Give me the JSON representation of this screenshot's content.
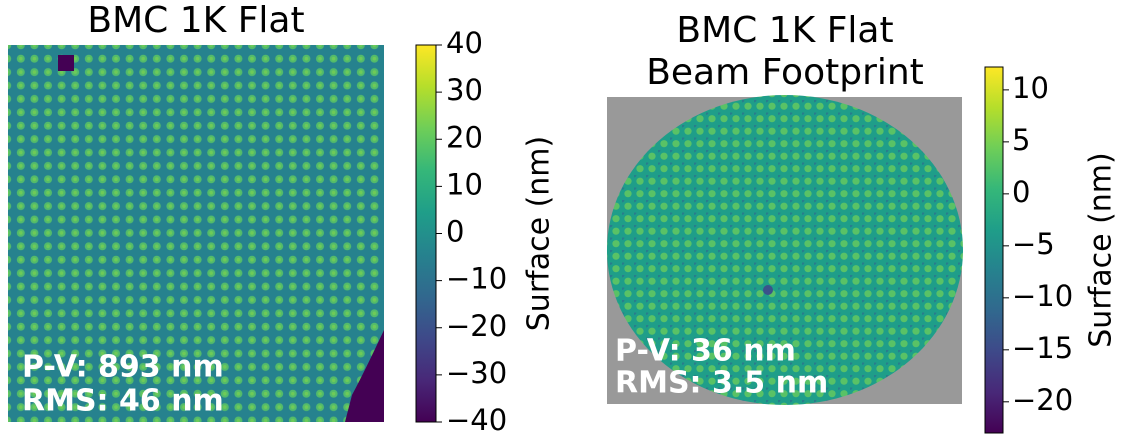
{
  "chart_data": [
    {
      "type": "heatmap",
      "title": "BMC 1K Flat",
      "colormap": "viridis",
      "colorbar_label": "Surface (nm)",
      "ylim": [
        -40,
        40
      ],
      "yticks": [
        {
          "value": -40,
          "label": "−40"
        },
        {
          "value": -30,
          "label": "−30"
        },
        {
          "value": -20,
          "label": "−20"
        },
        {
          "value": -10,
          "label": "−10"
        },
        0,
        10,
        20,
        30,
        40
      ],
      "annotations": [
        "P-V: 893 nm",
        "RMS: 46 nm"
      ]
    },
    {
      "type": "heatmap",
      "title": "BMC 1K Flat",
      "subtitle": "Beam Footprint",
      "colormap": "viridis",
      "colorbar_label": "Surface (nm)",
      "ylim": [
        -23,
        12.2
      ],
      "yticks": [
        {
          "value": -20,
          "label": "−20"
        },
        {
          "value": -15,
          "label": "−15"
        },
        {
          "value": -10,
          "label": "−10"
        },
        {
          "value": -5,
          "label": "−5"
        },
        0,
        5,
        10
      ],
      "annotations": [
        "P-V: 36 nm",
        "RMS: 3.5 nm"
      ]
    }
  ]
}
